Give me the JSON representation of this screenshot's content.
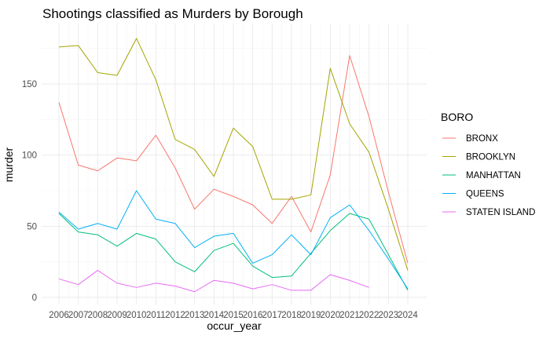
{
  "chart_data": {
    "type": "line",
    "title": "Shootings classified as Murders by Borough",
    "xlabel": "occur_year",
    "ylabel": "murder",
    "x": [
      2006,
      2007,
      2008,
      2009,
      2010,
      2011,
      2012,
      2013,
      2014,
      2015,
      2016,
      2017,
      2018,
      2019,
      2020,
      2021,
      2022,
      2023,
      2024
    ],
    "xlim": [
      2006,
      2024
    ],
    "ylim": [
      0,
      190
    ],
    "yticks": [
      0,
      50,
      100,
      150
    ],
    "grid": true,
    "legend": {
      "title": "BORO",
      "position": "right"
    },
    "series": [
      {
        "name": "BRONX",
        "color": "#F8766D",
        "values": [
          137,
          93,
          89,
          98,
          96,
          114,
          91,
          62,
          76,
          71,
          65,
          52,
          71,
          46,
          86,
          170,
          127,
          74,
          24
        ]
      },
      {
        "name": "BROOKLYN",
        "color": "#A3A500",
        "values": [
          176,
          177,
          158,
          156,
          182,
          153,
          111,
          104,
          85,
          119,
          106,
          69,
          69,
          72,
          161,
          122,
          102,
          62,
          19
        ]
      },
      {
        "name": "MANHATTAN",
        "color": "#00BF7D",
        "values": [
          59,
          46,
          44,
          36,
          45,
          41,
          25,
          18,
          33,
          38,
          22,
          14,
          15,
          31,
          47,
          59,
          55,
          30,
          5
        ]
      },
      {
        "name": "QUEENS",
        "color": "#00B0F6",
        "values": [
          60,
          48,
          52,
          48,
          75,
          55,
          52,
          35,
          43,
          45,
          24,
          30,
          44,
          30,
          56,
          65,
          47,
          27,
          6
        ]
      },
      {
        "name": "STATEN ISLAND",
        "color": "#E76BF3",
        "values": [
          13,
          9,
          19,
          10,
          7,
          10,
          8,
          4,
          12,
          10,
          6,
          9,
          5,
          5,
          16,
          12,
          7,
          null,
          null
        ]
      }
    ]
  }
}
